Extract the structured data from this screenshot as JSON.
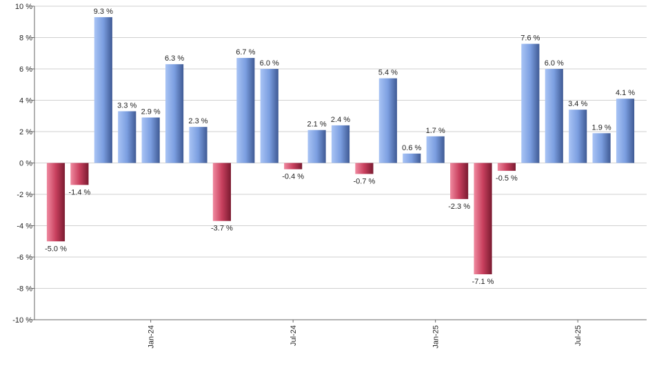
{
  "chart_data": {
    "type": "bar",
    "categories": [
      null,
      null,
      null,
      null,
      "Jan-24",
      null,
      null,
      null,
      null,
      null,
      "Jul-24",
      null,
      null,
      null,
      null,
      null,
      "Jan-25",
      null,
      null,
      null,
      null,
      null,
      "Jul-25",
      null,
      null
    ],
    "values": [
      -5.0,
      -1.4,
      9.3,
      3.3,
      2.9,
      6.3,
      2.3,
      -3.7,
      6.7,
      6.0,
      -0.4,
      2.1,
      2.4,
      -0.7,
      5.4,
      0.6,
      1.7,
      -2.3,
      -7.1,
      -0.5,
      7.6,
      6.0,
      3.4,
      1.9,
      4.1
    ],
    "value_labels": [
      "-5.0 %",
      "-1.4 %",
      "9.3 %",
      "3.3 %",
      "2.9 %",
      "6.3 %",
      "2.3 %",
      "-3.7 %",
      "6.7 %",
      "6.0 %",
      "-0.4 %",
      "2.1 %",
      "2.4 %",
      "-0.7 %",
      "5.4 %",
      "0.6 %",
      "1.7 %",
      "-2.3 %",
      "-7.1 %",
      "-0.5 %",
      "7.6 %",
      "6.0 %",
      "3.4 %",
      "1.9 %",
      "4.1 %"
    ],
    "positive_color": "#7b9ee0",
    "negative_color": "#c8405e",
    "ylim": [
      -10,
      10
    ],
    "yticks": [
      {
        "value": -10,
        "label": "-10 %"
      },
      {
        "value": -8,
        "label": "-8 %"
      },
      {
        "value": -6,
        "label": "-6 %"
      },
      {
        "value": -4,
        "label": "-4 %"
      },
      {
        "value": -2,
        "label": "-2 %"
      },
      {
        "value": 0,
        "label": "0 %"
      },
      {
        "value": 2,
        "label": "2 %"
      },
      {
        "value": 4,
        "label": "4 %"
      },
      {
        "value": 6,
        "label": "6 %"
      },
      {
        "value": 8,
        "label": "8 %"
      },
      {
        "value": 10,
        "label": "10 %"
      }
    ],
    "grid": true
  }
}
